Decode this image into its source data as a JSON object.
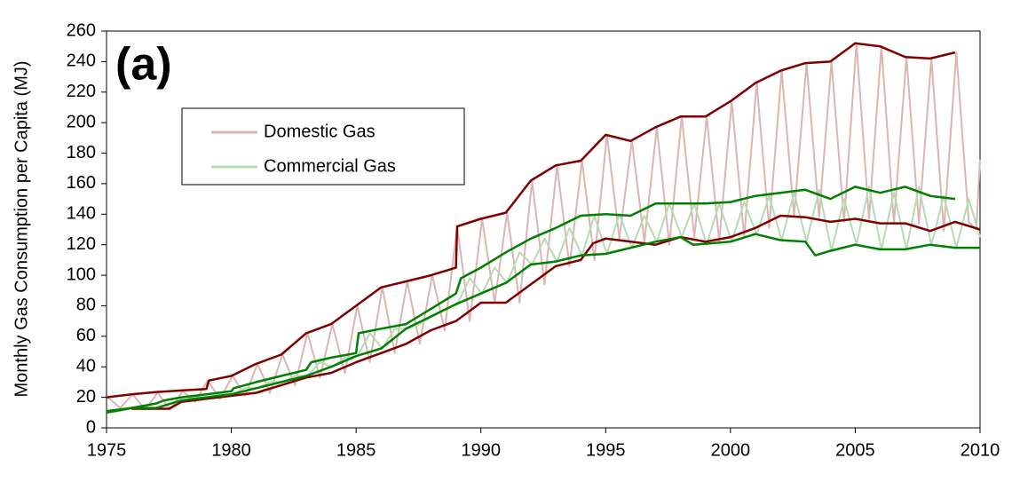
{
  "chart_data": {
    "type": "line",
    "label": "(a)",
    "ylabel": "Monthly Gas Consumption per Capita (MJ)",
    "xlim": [
      1975,
      2010
    ],
    "xticks": [
      1975,
      1980,
      1985,
      1990,
      1995,
      2000,
      2005,
      2010
    ],
    "ylim": [
      0,
      260
    ],
    "yticks": [
      0,
      20,
      40,
      60,
      80,
      100,
      120,
      140,
      160,
      180,
      200,
      220,
      240,
      260
    ],
    "grid": false,
    "legend": "upper left",
    "series": [
      {
        "name": "Domestic Gas",
        "color": "#dcb4b4",
        "width": 2,
        "x": [
          1975.05,
          1975.55,
          1976.05,
          1976.55,
          1977.05,
          1977.55,
          1978.05,
          1978.55,
          1979.05,
          1979.55,
          1980.05,
          1980.55,
          1981.05,
          1981.55,
          1982.05,
          1982.55,
          1983.05,
          1983.55,
          1984.05,
          1984.55,
          1985.05,
          1985.55,
          1986.05,
          1986.55,
          1987.05,
          1987.55,
          1988.05,
          1988.55,
          1989.05,
          1989.55,
          1990.05,
          1990.55,
          1991.05,
          1991.55,
          1992.05,
          1992.55,
          1993.05,
          1993.55,
          1994.05,
          1994.55,
          1995.05,
          1995.55,
          1996.05,
          1996.55,
          1997.05,
          1997.55,
          1998.05,
          1998.55,
          1999.05,
          1999.55,
          2000.05,
          2000.55,
          2001.05,
          2001.55,
          2002.05,
          2002.55,
          2003.05,
          2003.55,
          2004.05,
          2004.55,
          2005.05,
          2005.55,
          2006.05,
          2006.55,
          2007.05,
          2007.55,
          2008.05,
          2008.55,
          2009.05,
          2009.55,
          2009.85,
          2010
        ],
        "values": [
          20,
          13,
          22,
          12,
          23,
          12,
          24,
          17,
          31,
          19,
          34,
          21,
          42,
          23,
          48,
          28,
          62,
          33,
          68,
          36,
          80,
          43,
          92,
          49,
          96,
          55,
          100,
          64,
          132,
          70,
          137,
          82,
          141,
          82,
          162,
          94,
          172,
          106,
          175,
          110,
          192,
          124,
          188,
          122,
          197,
          120,
          204,
          125,
          204,
          122,
          214,
          125,
          226,
          131,
          234,
          139,
          239,
          138,
          240,
          135,
          252,
          137,
          250,
          134,
          243,
          134,
          242,
          129,
          246,
          135,
          130,
          176
        ]
      },
      {
        "name": "Commercial Gas",
        "color": "#b4dcb4",
        "width": 2,
        "x": [
          1975.05,
          1975.55,
          1976.05,
          1976.55,
          1977.05,
          1977.55,
          1978.05,
          1978.55,
          1979.05,
          1979.55,
          1980.05,
          1980.55,
          1981.05,
          1981.55,
          1982.05,
          1982.55,
          1983.05,
          1983.55,
          1984.05,
          1984.55,
          1985.05,
          1985.55,
          1986.05,
          1986.55,
          1987.05,
          1987.55,
          1988.05,
          1988.55,
          1989.05,
          1989.55,
          1990.05,
          1990.55,
          1991.05,
          1991.55,
          1992.05,
          1992.55,
          1993.05,
          1993.55,
          1994.05,
          1994.55,
          1995.05,
          1995.55,
          1996.05,
          1996.55,
          1997.05,
          1997.55,
          1998.05,
          1998.55,
          1999.05,
          1999.55,
          2000.05,
          2000.55,
          2001.05,
          2001.55,
          2002.05,
          2002.55,
          2003.05,
          2003.55,
          2004.05,
          2004.55,
          2005.05,
          2005.55,
          2006.05,
          2006.55,
          2007.05,
          2007.55,
          2008.05,
          2008.55,
          2009.05,
          2009.55,
          2010
        ],
        "values": [
          10,
          11,
          13,
          13,
          13,
          16,
          18,
          20,
          20,
          22,
          22,
          26,
          26,
          30,
          30,
          34,
          34,
          43,
          40,
          46,
          47,
          62,
          52,
          65,
          65,
          68,
          73,
          78,
          81,
          98,
          88,
          105,
          95,
          115,
          107,
          124,
          109,
          131,
          113,
          139,
          114,
          140,
          118,
          139,
          122,
          147,
          125,
          147,
          120,
          147,
          122,
          148,
          127,
          152,
          123,
          154,
          122,
          156,
          116,
          150,
          120,
          158,
          117,
          154,
          117,
          158,
          120,
          152,
          118,
          150,
          125
        ]
      },
      {
        "color": "#800000",
        "width": 2.5,
        "x": [
          1975,
          1976,
          1977,
          1978,
          1979,
          1979.1,
          1980,
          1981,
          1982,
          1983,
          1984,
          1985,
          1986,
          1987,
          1988,
          1989,
          1989.05,
          1990,
          1991,
          1992,
          1993,
          1994,
          1995,
          1996,
          1997,
          1998,
          1999,
          2000,
          2001,
          2002,
          2003,
          2004,
          2005,
          2006,
          2007,
          2008,
          2009
        ],
        "values": [
          20,
          22,
          23.5,
          24.5,
          25.5,
          31,
          34,
          42,
          48,
          62,
          68,
          80,
          92,
          96,
          100,
          105,
          132,
          137,
          141,
          162,
          172,
          175,
          192,
          188,
          197,
          204,
          204,
          214,
          226,
          234,
          239,
          240,
          252,
          250,
          243,
          242,
          246
        ]
      },
      {
        "color": "#800000",
        "width": 2.5,
        "x": [
          1976,
          1977.5,
          1978,
          1979,
          1980,
          1981,
          1982,
          1983,
          1984,
          1985,
          1986,
          1987,
          1988,
          1989,
          1990,
          1991,
          1992,
          1993,
          1994,
          1994.5,
          1995,
          1996,
          1997,
          1998,
          1999,
          2000,
          2001,
          2002,
          2003,
          2004,
          2005,
          2006,
          2007,
          2008,
          2009,
          2010
        ],
        "values": [
          12.5,
          12.5,
          17,
          19,
          21,
          23,
          28,
          33,
          36,
          43,
          49,
          55,
          64,
          70,
          82,
          82,
          94,
          106,
          110,
          121,
          124,
          122,
          120,
          125,
          122,
          125,
          131,
          139,
          138,
          135,
          137,
          134,
          134,
          129,
          135,
          130
        ]
      },
      {
        "color": "#008000",
        "width": 2.5,
        "x": [
          1975,
          1976,
          1977,
          1977.3,
          1978,
          1979,
          1980,
          1980.1,
          1981,
          1982,
          1983,
          1983.2,
          1984,
          1985,
          1985.1,
          1986,
          1987,
          1988,
          1989,
          1989.2,
          1990,
          1991,
          1992,
          1993,
          1994,
          1995,
          1996,
          1997,
          1998,
          1999,
          2000,
          2001,
          2002,
          2003,
          2004,
          2005,
          2006,
          2007,
          2008,
          2009
        ],
        "values": [
          11,
          13,
          16,
          18,
          20,
          22,
          24,
          26,
          30,
          34,
          38,
          43,
          46,
          49,
          62,
          65,
          68,
          78,
          88,
          98,
          105,
          115,
          124,
          131,
          139,
          140,
          139,
          147,
          147,
          147,
          148,
          152,
          154,
          156,
          150,
          158,
          154,
          158,
          152,
          150
        ]
      },
      {
        "color": "#008000",
        "width": 2.5,
        "x": [
          1975,
          1976,
          1977,
          1978,
          1979,
          1980,
          1981,
          1982,
          1983,
          1984,
          1985,
          1986,
          1987,
          1988,
          1989,
          1990,
          1991,
          1992,
          1993,
          1994,
          1995,
          1996,
          1997,
          1998,
          1998.5,
          2000,
          2001,
          2002,
          2003,
          2003.4,
          2004,
          2005,
          2006,
          2007,
          2008,
          2009,
          2010
        ],
        "values": [
          10,
          13,
          13,
          18,
          20,
          22,
          26,
          30,
          34,
          40,
          47,
          52,
          65,
          73,
          81,
          88,
          95,
          107,
          109,
          113,
          114,
          118,
          122,
          125,
          120,
          122,
          127,
          123,
          122,
          113,
          116,
          120,
          117,
          117,
          120,
          118,
          118
        ]
      }
    ]
  }
}
